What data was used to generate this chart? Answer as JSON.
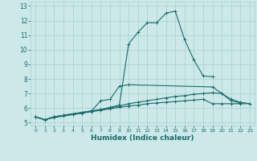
{
  "title": "",
  "xlabel": "Humidex (Indice chaleur)",
  "ylabel": "",
  "background_color": "#cce8e8",
  "line_color": "#1a6b6b",
  "grid_color": "#a8d0d0",
  "xlim": [
    -0.5,
    23.5
  ],
  "ylim": [
    4.8,
    13.3
  ],
  "xticks": [
    0,
    1,
    2,
    3,
    4,
    5,
    6,
    7,
    8,
    9,
    10,
    11,
    12,
    13,
    14,
    15,
    16,
    17,
    18,
    19,
    20,
    21,
    22,
    23
  ],
  "yticks": [
    5,
    6,
    7,
    8,
    9,
    10,
    11,
    12,
    13
  ],
  "x": [
    0,
    1,
    2,
    3,
    4,
    5,
    6,
    7,
    8,
    9,
    10,
    11,
    12,
    13,
    14,
    15,
    16,
    17,
    18,
    19,
    20,
    21,
    22,
    23
  ],
  "line1": [
    5.4,
    5.2,
    5.4,
    5.5,
    5.6,
    5.7,
    5.8,
    5.9,
    6.05,
    6.2,
    10.4,
    11.2,
    11.85,
    11.85,
    12.5,
    12.65,
    10.7,
    9.3,
    8.2,
    8.15,
    null,
    null,
    null,
    null
  ],
  "line2": [
    5.4,
    5.2,
    5.4,
    5.5,
    5.6,
    5.7,
    5.8,
    6.5,
    6.6,
    7.5,
    7.6,
    null,
    null,
    null,
    null,
    null,
    null,
    null,
    null,
    7.45,
    7.0,
    6.5,
    6.35,
    null
  ],
  "line3": [
    5.4,
    5.2,
    5.4,
    5.5,
    5.6,
    5.7,
    5.8,
    5.9,
    6.0,
    6.15,
    6.3,
    6.4,
    6.5,
    6.6,
    6.7,
    6.8,
    6.85,
    6.95,
    7.0,
    7.05,
    7.0,
    6.6,
    6.4,
    6.3
  ],
  "line4": [
    5.4,
    5.2,
    5.35,
    5.45,
    5.55,
    5.65,
    5.75,
    5.85,
    5.95,
    6.05,
    6.15,
    6.2,
    6.3,
    6.35,
    6.4,
    6.45,
    6.5,
    6.55,
    6.6,
    6.3,
    6.3,
    6.3,
    6.3,
    6.3
  ]
}
